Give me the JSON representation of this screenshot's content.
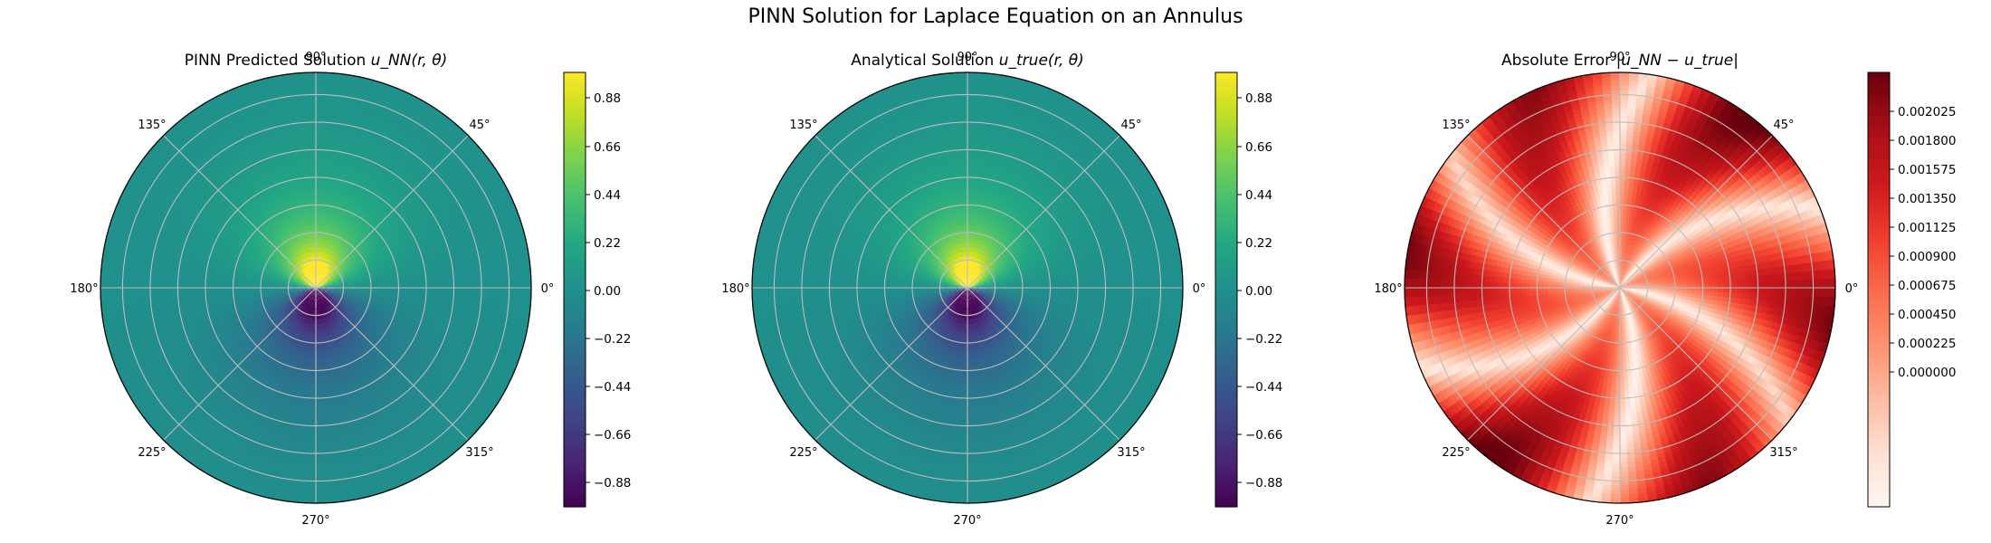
{
  "title": "PINN Solution for Laplace Equation on an Annulus",
  "panels": [
    {
      "title": "PINN Predicted Solution",
      "title_math": "u_NN(r, θ)",
      "colormap": "viridis",
      "field": "laplace",
      "colorbar": {
        "ticks": [
          "0.88",
          "0.66",
          "0.44",
          "0.22",
          "0.00",
          "−0.22",
          "−0.44",
          "−0.66",
          "−0.88"
        ],
        "range": [
          -1.0,
          1.0
        ]
      }
    },
    {
      "title": "Analytical Solution",
      "title_math": "u_true(r, θ)",
      "colormap": "viridis",
      "field": "laplace",
      "colorbar": {
        "ticks": [
          "0.88",
          "0.66",
          "0.44",
          "0.22",
          "0.00",
          "−0.22",
          "−0.44",
          "−0.66",
          "−0.88"
        ],
        "range": [
          -1.0,
          1.0
        ]
      }
    },
    {
      "title": "Absolute Error",
      "title_math": "|u_NN − u_true|",
      "colormap": "reds",
      "field": "error",
      "colorbar": {
        "ticks": [
          "0.002025",
          "0.001800",
          "0.001575",
          "0.001350",
          "0.001125",
          "0.000900",
          "0.000675",
          "0.000450",
          "0.000225",
          "0.000000"
        ],
        "range": [
          0.0,
          0.00242
        ]
      }
    }
  ],
  "angle_labels": [
    "0°",
    "45°",
    "90°",
    "135°",
    "180°",
    "225°",
    "270°",
    "315°"
  ],
  "chart_data": [
    {
      "type": "heatmap",
      "projection": "polar",
      "title": "PINN Predicted Solution u_NN(r, θ)",
      "theta_ticks": [
        "0°",
        "45°",
        "90°",
        "135°",
        "180°",
        "225°",
        "270°",
        "315°"
      ],
      "colorbar_ticks": [
        0.88,
        0.66,
        0.44,
        0.22,
        0.0,
        -0.22,
        -0.44,
        -0.66,
        -0.88
      ],
      "value_range": [
        -0.99,
        0.99
      ],
      "colormap": "viridis",
      "grid": true,
      "pattern": "maximum near center at 90°, minimum near center at 270°, ~0 at outer rim"
    },
    {
      "type": "heatmap",
      "projection": "polar",
      "title": "Analytical Solution u_true(r, θ)",
      "theta_ticks": [
        "0°",
        "45°",
        "90°",
        "135°",
        "180°",
        "225°",
        "270°",
        "315°"
      ],
      "colorbar_ticks": [
        0.88,
        0.66,
        0.44,
        0.22,
        0.0,
        -0.22,
        -0.44,
        -0.66,
        -0.88
      ],
      "value_range": [
        -0.99,
        0.99
      ],
      "colormap": "viridis",
      "grid": true,
      "pattern": "maximum near center at 90°, minimum near center at 270°, ~0 at outer rim"
    },
    {
      "type": "heatmap",
      "projection": "polar",
      "title": "Absolute Error |u_NN − u_true|",
      "theta_ticks": [
        "0°",
        "45°",
        "90°",
        "135°",
        "180°",
        "225°",
        "270°",
        "315°"
      ],
      "colorbar_ticks": [
        0.002025,
        0.0018,
        0.001575,
        0.00135,
        0.001125,
        0.0009,
        0.000675,
        0.00045,
        0.000225,
        0.0
      ],
      "value_range": [
        0.0,
        0.00242
      ],
      "colormap": "Reds",
      "grid": true,
      "pattern": "radial bands of higher error, peak near 180° at outer rim"
    }
  ]
}
